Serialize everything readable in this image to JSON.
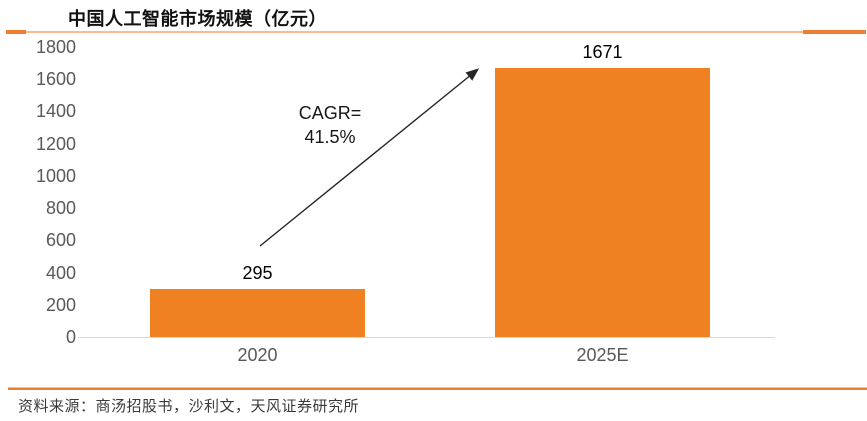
{
  "header": {
    "title": "中国人工智能市场规模（亿元）"
  },
  "annotation": {
    "line1": "CAGR=",
    "line2": "41.5%"
  },
  "footer": {
    "source": "资料来源：商汤招股书，沙利文，天风证券研究所"
  },
  "colors": {
    "bar": "#F08122",
    "rule_light": "#F6BE8D",
    "rule_dark": "#ED7D31",
    "axis_line": "#D9D9D9",
    "axis_text": "#595959",
    "arrow": "#262626"
  },
  "chart_data": {
    "type": "bar",
    "title": "中国人工智能市场规模（亿元）",
    "categories": [
      "2020",
      "2025E"
    ],
    "values": [
      295,
      1671
    ],
    "data_labels": [
      "295",
      "1671"
    ],
    "xlabel": "",
    "ylabel": "",
    "ylim": [
      0,
      1800
    ],
    "yticks": [
      0,
      200,
      400,
      600,
      800,
      1000,
      1200,
      1400,
      1600,
      1800
    ],
    "grid": false,
    "legend": false,
    "bar_color": "#F08122",
    "annotations": [
      "CAGR= 41.5%"
    ]
  }
}
